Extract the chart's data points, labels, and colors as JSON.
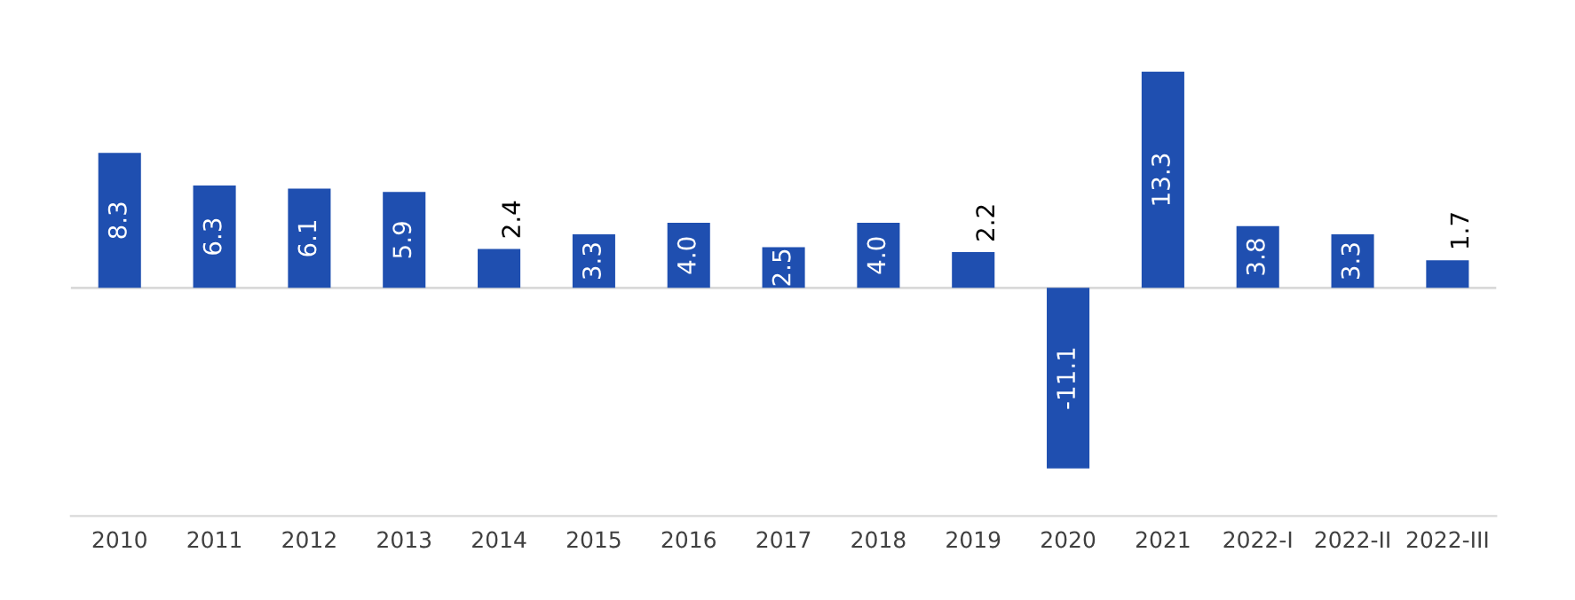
{
  "chart_data": {
    "type": "bar",
    "categories": [
      "2010",
      "2011",
      "2012",
      "2013",
      "2014",
      "2015",
      "2016",
      "2017",
      "2018",
      "2019",
      "2020",
      "2021",
      "2022-I",
      "2022-II",
      "2022-III"
    ],
    "values": [
      8.3,
      6.3,
      6.1,
      5.9,
      2.4,
      3.3,
      4.0,
      2.5,
      4.0,
      2.2,
      -11.1,
      13.3,
      3.8,
      3.3,
      1.7
    ],
    "value_labels": [
      "8.3",
      "6.3",
      "6.1",
      "5.9",
      "2.4",
      "3.3",
      "4.0",
      "2.5",
      "4.0",
      "2.2",
      "-11.1",
      "13.3",
      "3.8",
      "3.3",
      "1.7"
    ],
    "color": "#1f4fb0",
    "grid": false,
    "legend": false
  }
}
